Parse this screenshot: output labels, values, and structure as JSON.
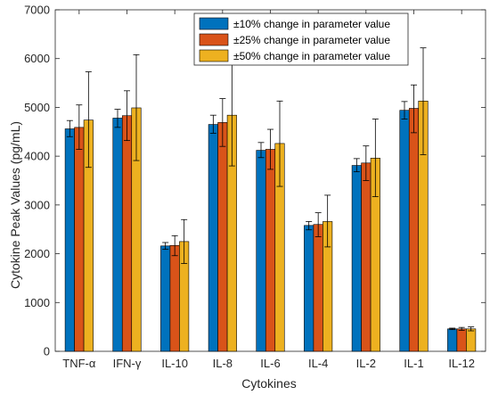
{
  "chart_data": {
    "type": "bar",
    "xlabel": "Cytokines",
    "ylabel": "Cytokine Peak Values (pg/mL)",
    "ylim": [
      0,
      7000
    ],
    "yticks": [
      0,
      1000,
      2000,
      3000,
      4000,
      5000,
      6000,
      7000
    ],
    "categories": [
      "TNF-α",
      "IFN-γ",
      "IL-10",
      "IL-8",
      "IL-6",
      "IL-4",
      "IL-2",
      "IL-1",
      "IL-12"
    ],
    "grid": false,
    "legend_position": "top-right",
    "series": [
      {
        "name": "±10% change in parameter value",
        "color": "#0072BD",
        "values": [
          4560,
          4780,
          2160,
          4650,
          4120,
          2580,
          3810,
          4940,
          460
        ],
        "err_low": [
          4400,
          4590,
          2090,
          4470,
          3970,
          2490,
          3680,
          4760,
          445
        ],
        "err_high": [
          4730,
          4960,
          2230,
          4840,
          4280,
          2660,
          3950,
          5120,
          475
        ]
      },
      {
        "name": "±25% change in parameter value",
        "color": "#D95319",
        "values": [
          4590,
          4830,
          2170,
          4690,
          4140,
          2600,
          3860,
          4980,
          460
        ],
        "err_low": [
          4140,
          4320,
          1960,
          4200,
          3730,
          2350,
          3500,
          4480,
          430
        ],
        "err_high": [
          5050,
          5340,
          2370,
          5180,
          4550,
          2840,
          4210,
          5460,
          490
        ]
      },
      {
        "name": "±50% change in parameter value",
        "color": "#EDB120",
        "values": [
          4740,
          4990,
          2250,
          4840,
          4260,
          2660,
          3960,
          5130,
          460
        ],
        "err_low": [
          3770,
          3910,
          1800,
          3800,
          3380,
          2140,
          3170,
          4030,
          420
        ],
        "err_high": [
          5730,
          6080,
          2700,
          5880,
          5130,
          3200,
          4760,
          6220,
          500
        ]
      }
    ]
  }
}
